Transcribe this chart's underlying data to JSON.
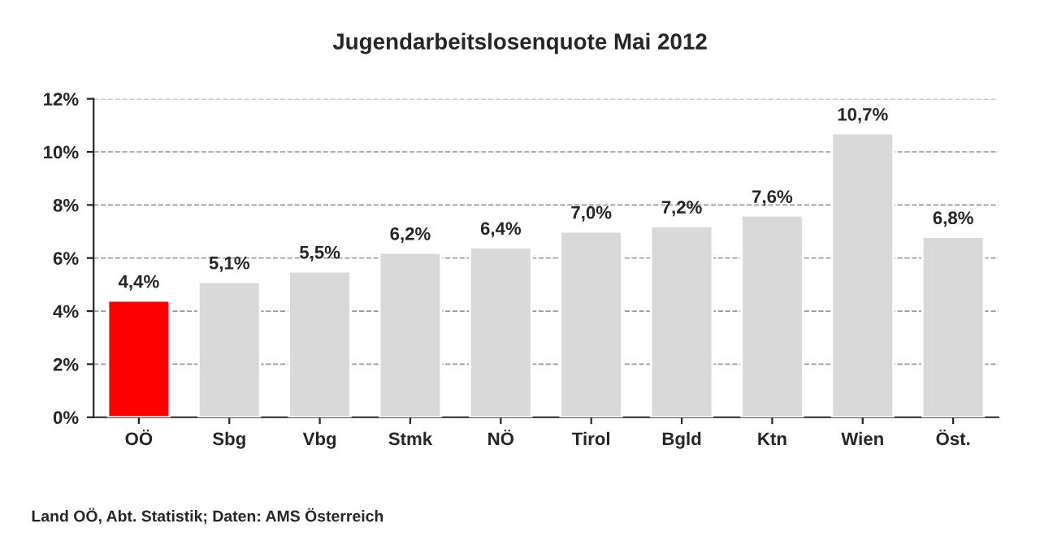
{
  "chart_data": {
    "type": "bar",
    "title": "Jugendarbeitslosenquote Mai 2012",
    "categories": [
      "OÖ",
      "Sbg",
      "Vbg",
      "Stmk",
      "NÖ",
      "Tirol",
      "Bgld",
      "Ktn",
      "Wien",
      "Öst."
    ],
    "values": [
      4.4,
      5.1,
      5.5,
      6.2,
      6.4,
      7.0,
      7.2,
      7.6,
      10.7,
      6.8
    ],
    "value_labels": [
      "4,4%",
      "5,1%",
      "5,5%",
      "6,2%",
      "6,4%",
      "7,0%",
      "7,2%",
      "7,6%",
      "10,7%",
      "6,8%"
    ],
    "colors": [
      "#ff0000",
      "#d9d9d9",
      "#d9d9d9",
      "#d9d9d9",
      "#d9d9d9",
      "#d9d9d9",
      "#d9d9d9",
      "#d9d9d9",
      "#d9d9d9",
      "#d9d9d9"
    ],
    "ylim": [
      0,
      12
    ],
    "yticks": [
      {
        "value": 0,
        "label": "0%"
      },
      {
        "value": 2,
        "label": "2%"
      },
      {
        "value": 4,
        "label": "4%"
      },
      {
        "value": 6,
        "label": "6%"
      },
      {
        "value": 8,
        "label": "8%"
      },
      {
        "value": 10,
        "label": "10%"
      },
      {
        "value": 12,
        "label": "12%"
      }
    ],
    "grid": "y",
    "legend": false,
    "annotations": [
      "Land OÖ, Abt. Statistik; Daten: AMS Österreich"
    ]
  }
}
